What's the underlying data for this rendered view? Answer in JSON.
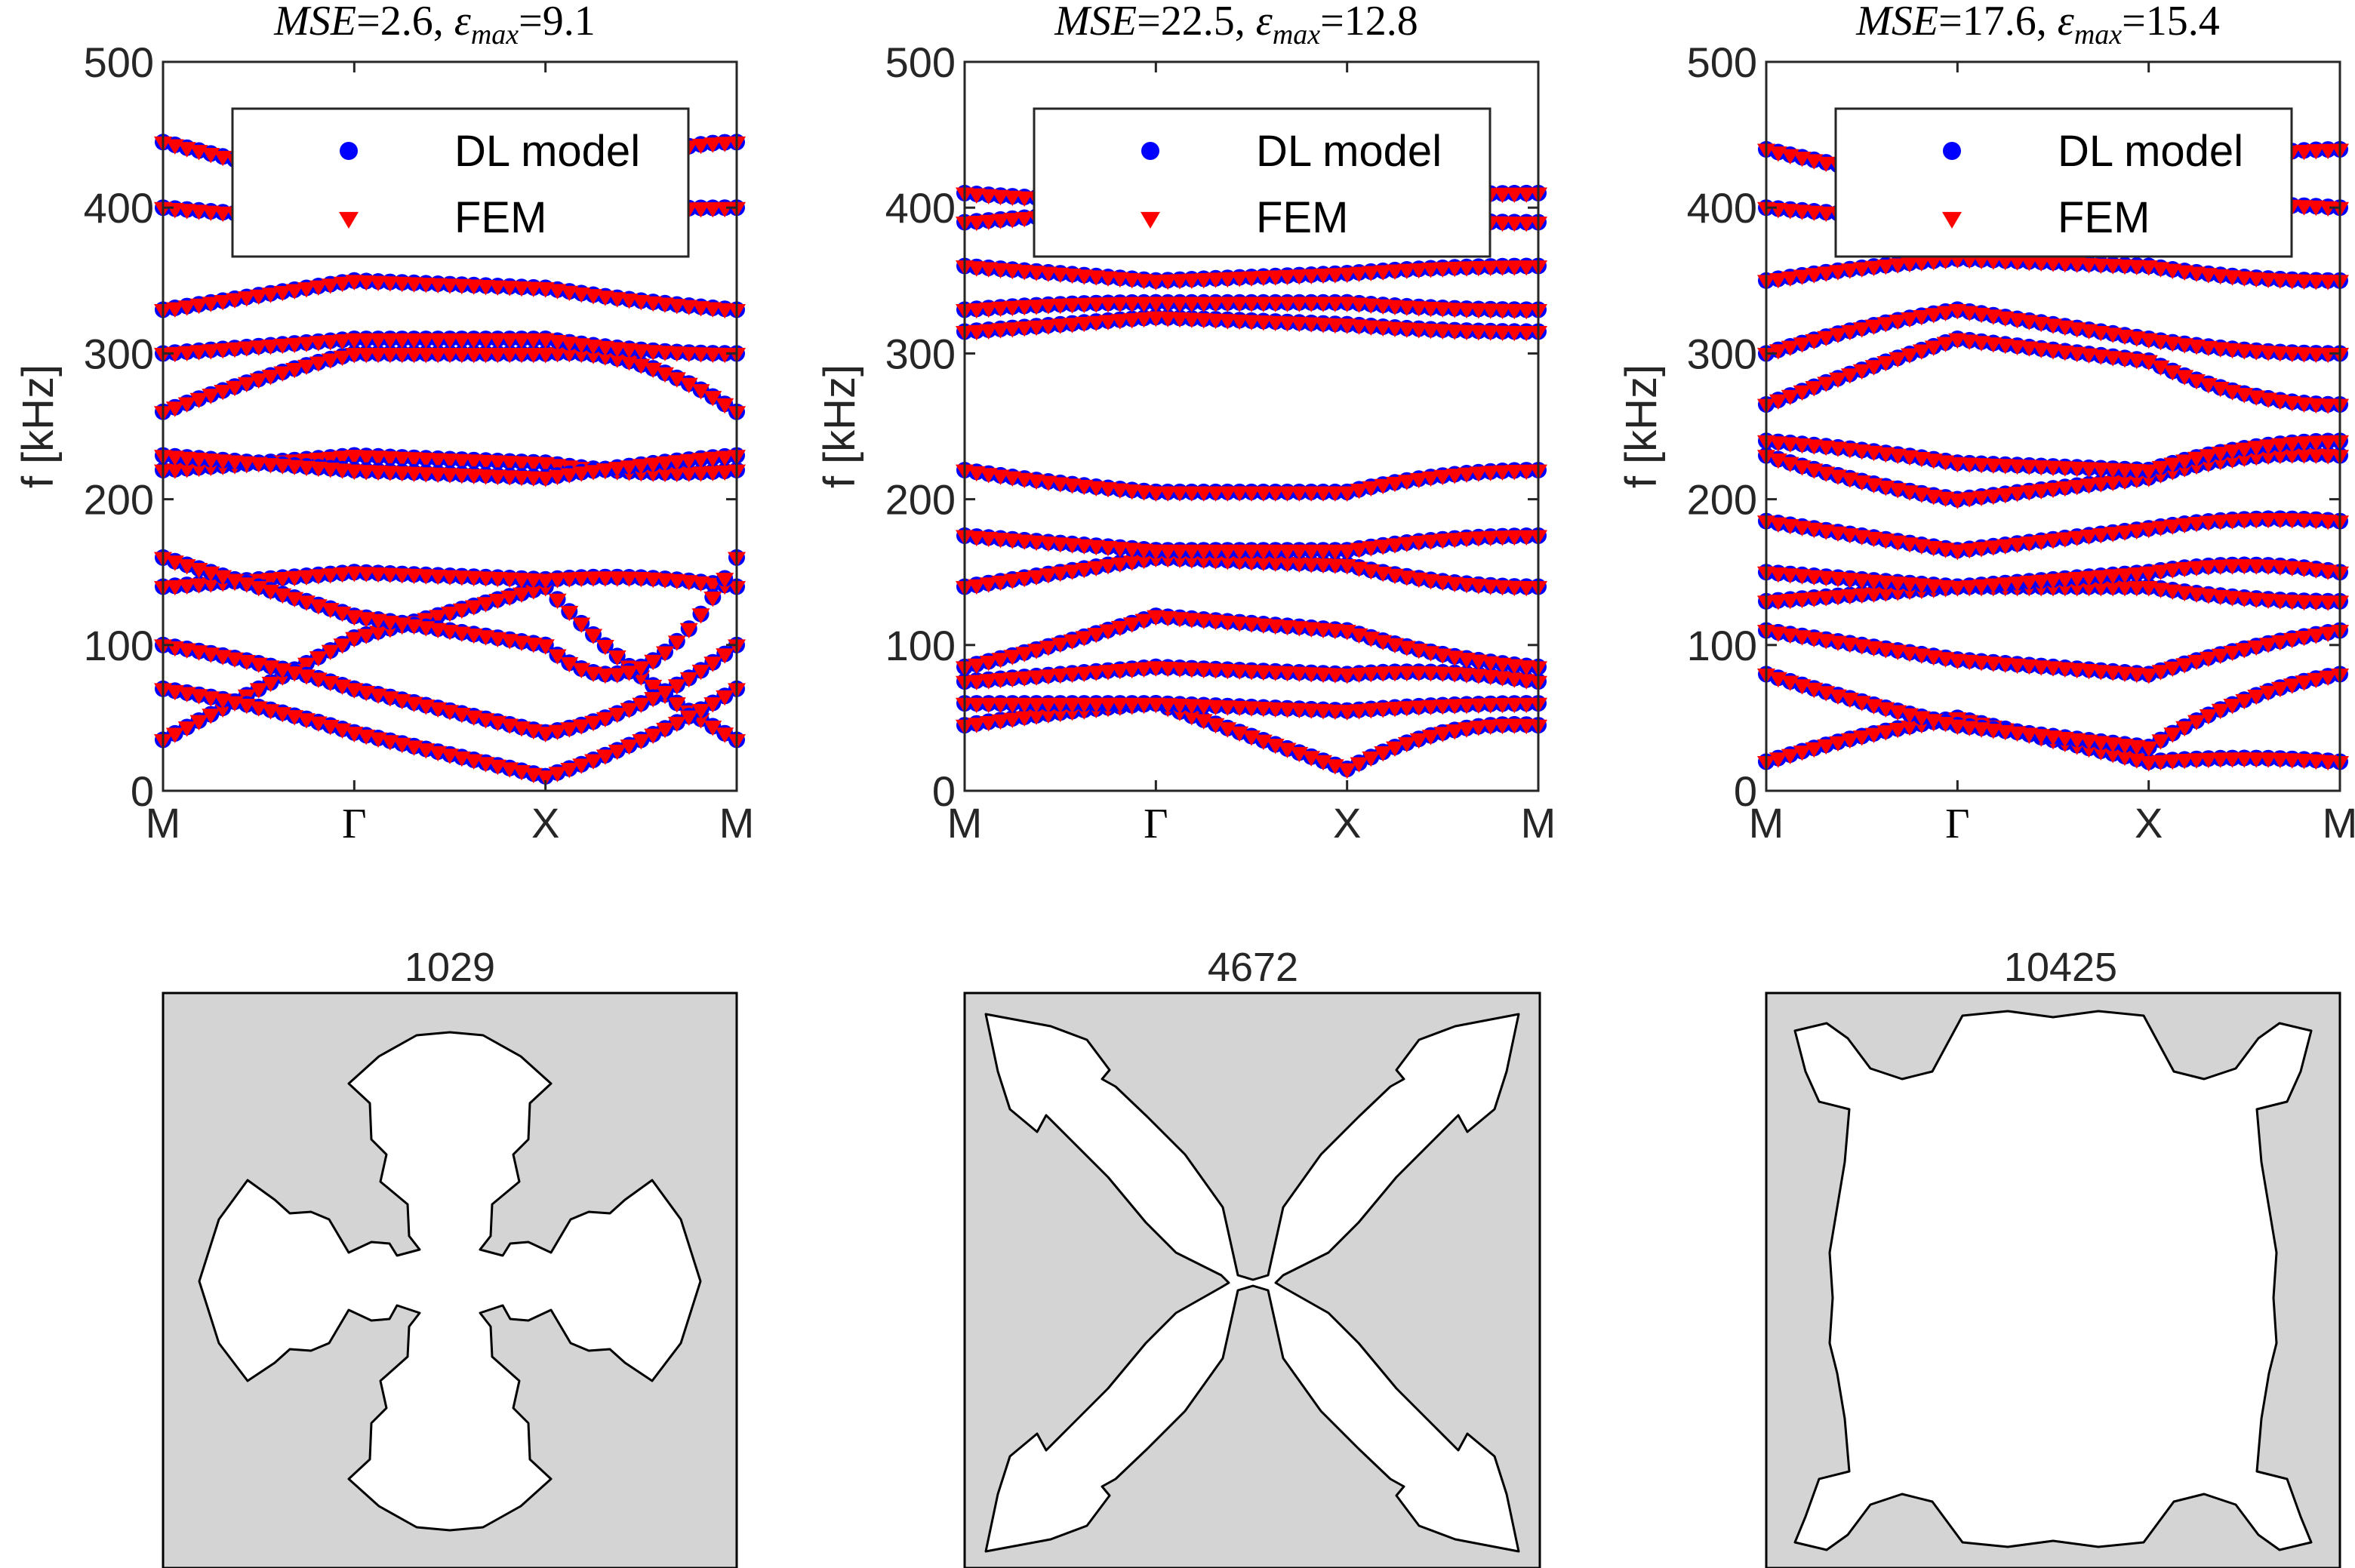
{
  "chart_data": [
    {
      "type": "scatter",
      "panel": "band-structure-1",
      "title": {
        "mse_label": "MSE",
        "mse_value": "=2.6, ",
        "eps_label": "ε",
        "eps_sub": "max",
        "eps_value": "=9.1"
      },
      "ylabel": "f [kHz]",
      "ylim": [
        0,
        500
      ],
      "yticks": [
        "0",
        "100",
        "200",
        "300",
        "400",
        "500"
      ],
      "xticks": [
        "M",
        "Γ",
        "X",
        "M"
      ],
      "legend": {
        "position": "top-right",
        "entries": [
          "DL model",
          "FEM"
        ]
      },
      "series": [
        {
          "name": "DL model",
          "color": "#0000ff",
          "marker": "circle"
        },
        {
          "name": "FEM",
          "color": "#ff0000",
          "marker": "triangle-down"
        }
      ],
      "bands": [
        [
          35,
          70,
          105,
          140,
          70,
          0
        ],
        [
          70,
          60,
          40,
          10,
          30,
          0
        ],
        [
          100,
          90,
          70,
          40,
          50,
          0
        ],
        [
          140,
          145,
          150,
          145,
          150,
          5
        ],
        [
          160,
          140,
          120,
          100,
          40,
          0
        ],
        [
          220,
          225,
          230,
          225,
          215,
          35
        ],
        [
          230,
          225,
          220,
          215,
          225,
          70
        ],
        [
          260,
          285,
          300,
          300,
          305,
          100
        ],
        [
          300,
          305,
          310,
          310,
          300,
          140
        ],
        [
          330,
          340,
          350,
          345,
          335,
          160
        ],
        [
          400,
          395,
          390,
          395,
          400,
          215
        ],
        [
          445,
          430,
          410,
          400,
          445,
          230
        ]
      ]
    },
    {
      "type": "scatter",
      "panel": "band-structure-2",
      "title": {
        "mse_label": "MSE",
        "mse_value": "=22.5, ",
        "eps_label": "ε",
        "eps_sub": "max",
        "eps_value": "=12.8"
      },
      "ylabel": "f [kHz]",
      "ylim": [
        0,
        500
      ],
      "yticks": [
        "0",
        "100",
        "200",
        "300",
        "400",
        "500"
      ],
      "xticks": [
        "M",
        "Γ",
        "X",
        "M"
      ],
      "legend": {
        "position": "top-right",
        "entries": [
          "DL model",
          "FEM"
        ]
      },
      "series": [
        {
          "name": "DL model",
          "color": "#0000ff",
          "marker": "circle"
        },
        {
          "name": "FEM",
          "color": "#ff0000",
          "marker": "triangle-down"
        }
      ],
      "bands": [
        [
          45,
          55,
          60,
          15,
          50,
          0
        ],
        [
          60,
          60,
          60,
          55,
          60,
          5
        ],
        [
          75,
          80,
          85,
          80,
          85,
          40
        ],
        [
          85,
          100,
          120,
          110,
          90,
          55
        ],
        [
          140,
          150,
          160,
          155,
          140,
          60
        ],
        [
          175,
          170,
          165,
          165,
          175,
          120
        ],
        [
          220,
          210,
          205,
          205,
          220,
          200
        ],
        [
          315,
          320,
          325,
          320,
          315,
          255
        ],
        [
          330,
          335,
          335,
          335,
          330,
          320
        ],
        [
          360,
          355,
          350,
          355,
          360,
          340
        ],
        [
          390,
          395,
          400,
          395,
          390,
          395
        ],
        [
          410,
          405,
          405,
          405,
          410,
          400
        ]
      ]
    },
    {
      "type": "scatter",
      "panel": "band-structure-3",
      "title": {
        "mse_label": "MSE",
        "mse_value": "=17.6, ",
        "eps_label": "ε",
        "eps_sub": "max",
        "eps_value": "=15.4"
      },
      "ylabel": "f [kHz]",
      "ylim": [
        0,
        500
      ],
      "yticks": [
        "0",
        "100",
        "200",
        "300",
        "400",
        "500"
      ],
      "xticks": [
        "M",
        "Γ",
        "X",
        "M"
      ],
      "legend": {
        "position": "top-right",
        "entries": [
          "DL model",
          "FEM"
        ]
      },
      "series": [
        {
          "name": "DL model",
          "color": "#0000ff",
          "marker": "circle"
        },
        {
          "name": "FEM",
          "color": "#ff0000",
          "marker": "triangle-down"
        }
      ],
      "bands": [
        [
          20,
          40,
          50,
          20,
          25,
          0
        ],
        [
          80,
          60,
          45,
          30,
          70,
          0
        ],
        [
          110,
          100,
          90,
          80,
          100,
          20
        ],
        [
          130,
          135,
          140,
          140,
          130,
          70
        ],
        [
          150,
          145,
          140,
          150,
          160,
          110
        ],
        [
          185,
          175,
          165,
          180,
          190,
          130
        ],
        [
          230,
          210,
          200,
          215,
          235,
          150
        ],
        [
          240,
          235,
          225,
          220,
          240,
          200
        ],
        [
          265,
          290,
          310,
          295,
          265,
          290
        ],
        [
          300,
          320,
          330,
          310,
          300,
          320
        ],
        [
          350,
          360,
          365,
          360,
          350,
          350
        ],
        [
          400,
          395,
          390,
          395,
          405,
          380
        ],
        [
          440,
          425,
          415,
          420,
          440,
          400
        ]
      ]
    }
  ],
  "unit_cells": [
    {
      "label": "1029",
      "solid_color": "#d4d4d4",
      "void_color": "#ffffff"
    },
    {
      "label": "4672",
      "solid_color": "#d4d4d4",
      "void_color": "#ffffff"
    },
    {
      "label": "10425",
      "solid_color": "#d4d4d4",
      "void_color": "#ffffff"
    }
  ]
}
